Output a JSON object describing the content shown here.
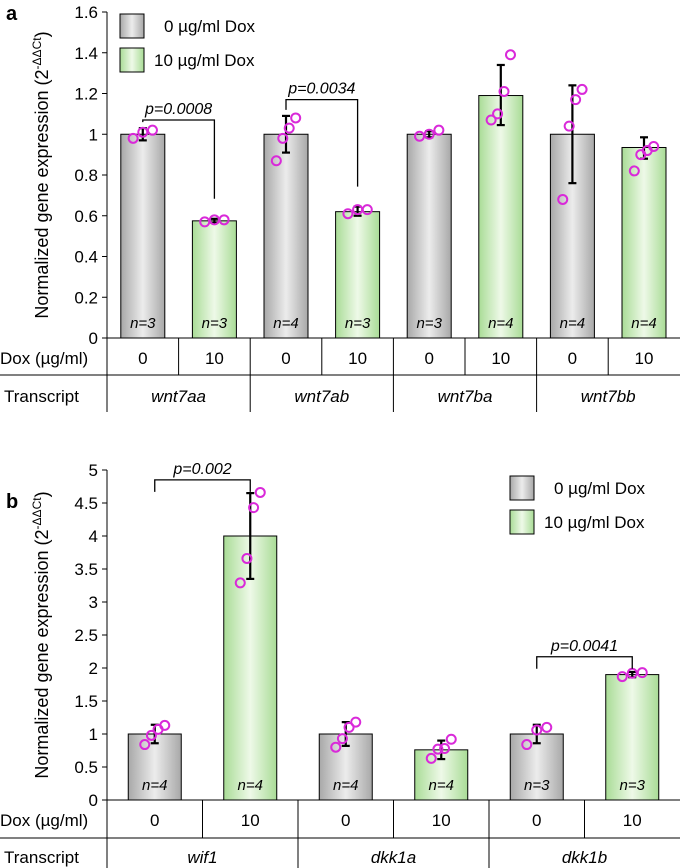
{
  "chart_data": [
    {
      "panel_letter": "a",
      "type": "bar",
      "ylabel_main": "Normalized gene expression (2",
      "ylabel_sup": "-ΔΔCt",
      "ylabel_close": ")",
      "ylim": [
        0,
        1.6
      ],
      "yticks": [
        "0",
        "0.2",
        "0.4",
        "0.6",
        "0.8",
        "1",
        "1.2",
        "1.4",
        "1.6"
      ],
      "ytick_values": [
        0,
        0.2,
        0.4,
        0.6,
        0.8,
        1.0,
        1.2,
        1.4,
        1.6
      ],
      "legend": [
        "0 µg/ml Dox",
        "10 µg/ml Dox"
      ],
      "legend_position": "top-left",
      "dox_label": "Dox (µg/ml)",
      "transcript_label": "Transcript",
      "groups": [
        {
          "transcript": "wnt7aa",
          "bars": [
            {
              "dox": "0",
              "value": 1.0,
              "err": [
                0.97,
                1.03
              ],
              "n": "n=3",
              "points": [
                0.98,
                1.01,
                1.02
              ]
            },
            {
              "dox": "10",
              "value": 0.575,
              "err": [
                0.565,
                0.585
              ],
              "n": "n=3",
              "points": [
                0.57,
                0.58,
                0.58
              ]
            }
          ]
        },
        {
          "transcript": "wnt7ab",
          "bars": [
            {
              "dox": "0",
              "value": 1.0,
              "err": [
                0.91,
                1.09
              ],
              "n": "n=4",
              "points": [
                0.87,
                0.98,
                1.03,
                1.08
              ]
            },
            {
              "dox": "10",
              "value": 0.62,
              "err": [
                0.6,
                0.645
              ],
              "n": "n=3",
              "points": [
                0.61,
                0.63,
                0.63
              ]
            }
          ]
        },
        {
          "transcript": "wnt7ba",
          "bars": [
            {
              "dox": "0",
              "value": 1.0,
              "err": [
                0.985,
                1.015
              ],
              "n": "n=3",
              "points": [
                0.99,
                1.0,
                1.02
              ]
            },
            {
              "dox": "10",
              "value": 1.19,
              "err": [
                1.045,
                1.34
              ],
              "n": "n=4",
              "points": [
                1.07,
                1.1,
                1.21,
                1.39
              ]
            }
          ]
        },
        {
          "transcript": "wnt7bb",
          "bars": [
            {
              "dox": "0",
              "value": 1.0,
              "err": [
                0.76,
                1.24
              ],
              "n": "n=4",
              "points": [
                0.68,
                1.04,
                1.17,
                1.22
              ]
            },
            {
              "dox": "10",
              "value": 0.935,
              "err": [
                0.88,
                0.985
              ],
              "n": "n=4",
              "points": [
                0.82,
                0.9,
                0.92,
                0.94
              ]
            }
          ]
        }
      ],
      "annotations": [
        {
          "text": "p=0.0008",
          "from_bar": 0,
          "to_bar": 1,
          "y": 1.07
        },
        {
          "text": "p=0.0034",
          "from_bar": 2,
          "to_bar": 3,
          "y": 1.17
        }
      ]
    },
    {
      "panel_letter": "b",
      "type": "bar",
      "ylabel_main": "Normalized gene expression (2",
      "ylabel_sup": "-ΔΔCt",
      "ylabel_close": ")",
      "ylim": [
        0,
        5
      ],
      "yticks": [
        "0",
        "0.5",
        "1",
        "1.5",
        "2",
        "2.5",
        "3",
        "3.5",
        "4",
        "4.5",
        "5"
      ],
      "ytick_values": [
        0,
        0.5,
        1,
        1.5,
        2,
        2.5,
        3,
        3.5,
        4,
        4.5,
        5
      ],
      "legend": [
        "0 µg/ml Dox",
        "10 µg/ml Dox"
      ],
      "legend_position": "top-right",
      "dox_label": "Dox (µg/ml)",
      "transcript_label": "Transcript",
      "groups": [
        {
          "transcript": "wif1",
          "bars": [
            {
              "dox": "0",
              "value": 1.0,
              "err": [
                0.86,
                1.14
              ],
              "n": "n=4",
              "points": [
                0.84,
                0.98,
                1.07,
                1.13
              ]
            },
            {
              "dox": "10",
              "value": 4.0,
              "err": [
                3.35,
                4.65
              ],
              "n": "n=4",
              "points": [
                3.29,
                3.66,
                4.43,
                4.66
              ]
            }
          ]
        },
        {
          "transcript": "dkk1a",
          "bars": [
            {
              "dox": "0",
              "value": 1.0,
              "err": [
                0.82,
                1.18
              ],
              "n": "n=4",
              "points": [
                0.8,
                0.93,
                1.1,
                1.18
              ]
            },
            {
              "dox": "10",
              "value": 0.76,
              "err": [
                0.62,
                0.9
              ],
              "n": "n=4",
              "points": [
                0.63,
                0.77,
                0.78,
                0.92
              ]
            }
          ]
        },
        {
          "transcript": "dkk1b",
          "bars": [
            {
              "dox": "0",
              "value": 1.0,
              "err": [
                0.86,
                1.14
              ],
              "n": "n=3",
              "points": [
                0.84,
                1.06,
                1.1
              ]
            },
            {
              "dox": "10",
              "value": 1.9,
              "err": [
                1.86,
                1.94
              ],
              "n": "n=3",
              "points": [
                1.87,
                1.92,
                1.93
              ]
            }
          ]
        }
      ],
      "annotations": [
        {
          "text": "p=0.002",
          "from_bar": 0,
          "to_bar": 1,
          "y": 4.85
        },
        {
          "text": "p=0.0041",
          "from_bar": 4,
          "to_bar": 5,
          "y": 2.17
        }
      ]
    }
  ],
  "colors": {
    "gray_bar_dark": "#a8a8a8",
    "gray_bar_light": "#e6e6e6",
    "green_bar_dark": "#a9dc96",
    "green_bar_light": "#eaf8e2",
    "point_stroke": "#d929d9",
    "axis": "#000000"
  }
}
